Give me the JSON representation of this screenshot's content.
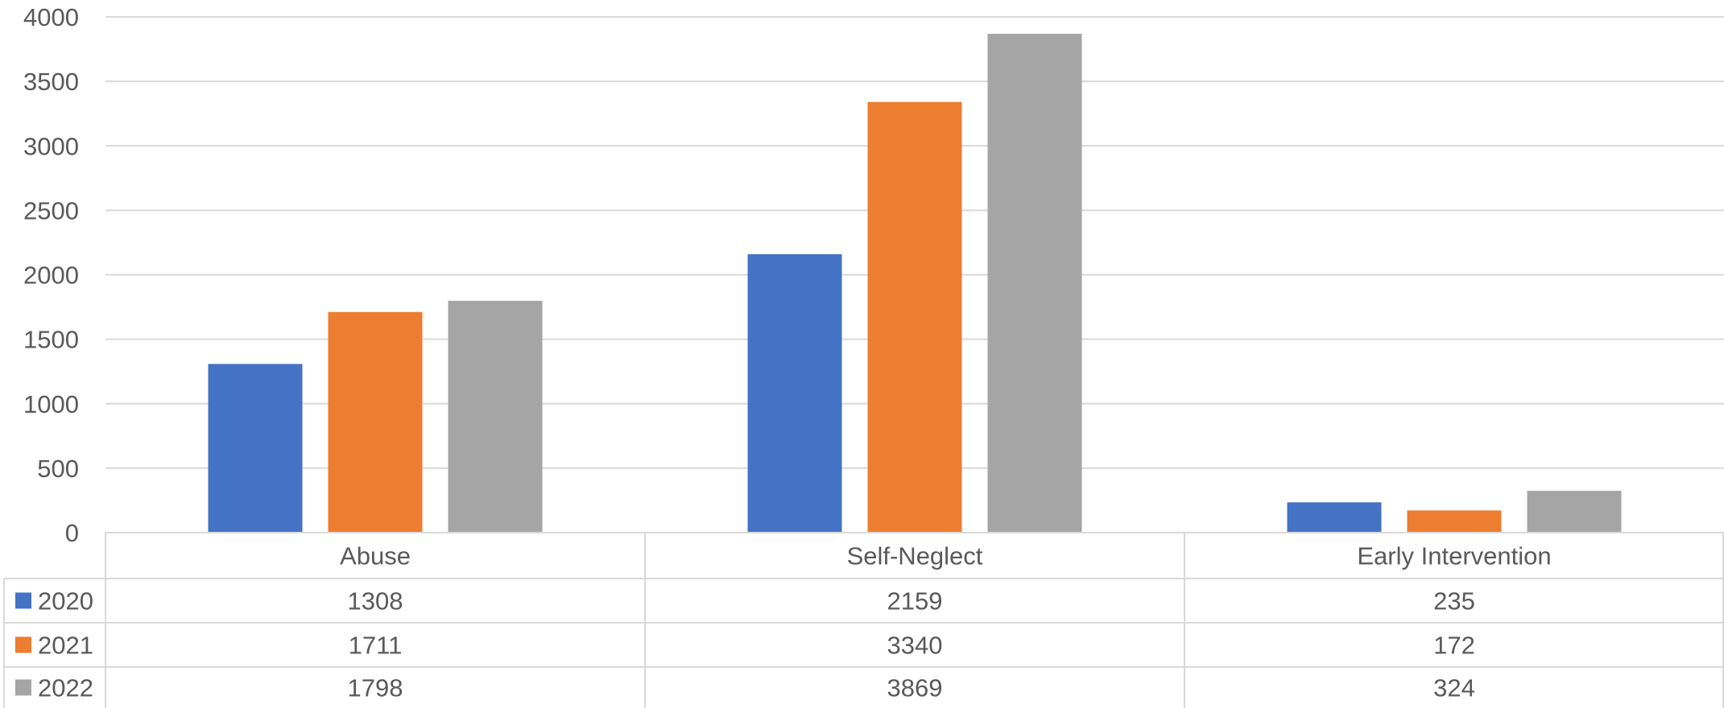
{
  "chart_data": {
    "type": "bar",
    "title": "",
    "xlabel": "",
    "ylabel": "",
    "categories": [
      "Abuse",
      "Self-Neglect",
      "Early Intervention"
    ],
    "series": [
      {
        "name": "2020",
        "values": [
          1308,
          2159,
          235
        ],
        "color": "#4472C4"
      },
      {
        "name": "2021",
        "values": [
          1711,
          3340,
          172
        ],
        "color": "#ED7D31"
      },
      {
        "name": "2022",
        "values": [
          1798,
          3869,
          324
        ],
        "color": "#A5A5A5"
      }
    ],
    "ylim": [
      0,
      4000
    ],
    "yticks": [
      0,
      500,
      1000,
      1500,
      2000,
      2500,
      3000,
      3500,
      4000
    ],
    "grid": true,
    "legend": "data-table-left",
    "data_table": true
  }
}
